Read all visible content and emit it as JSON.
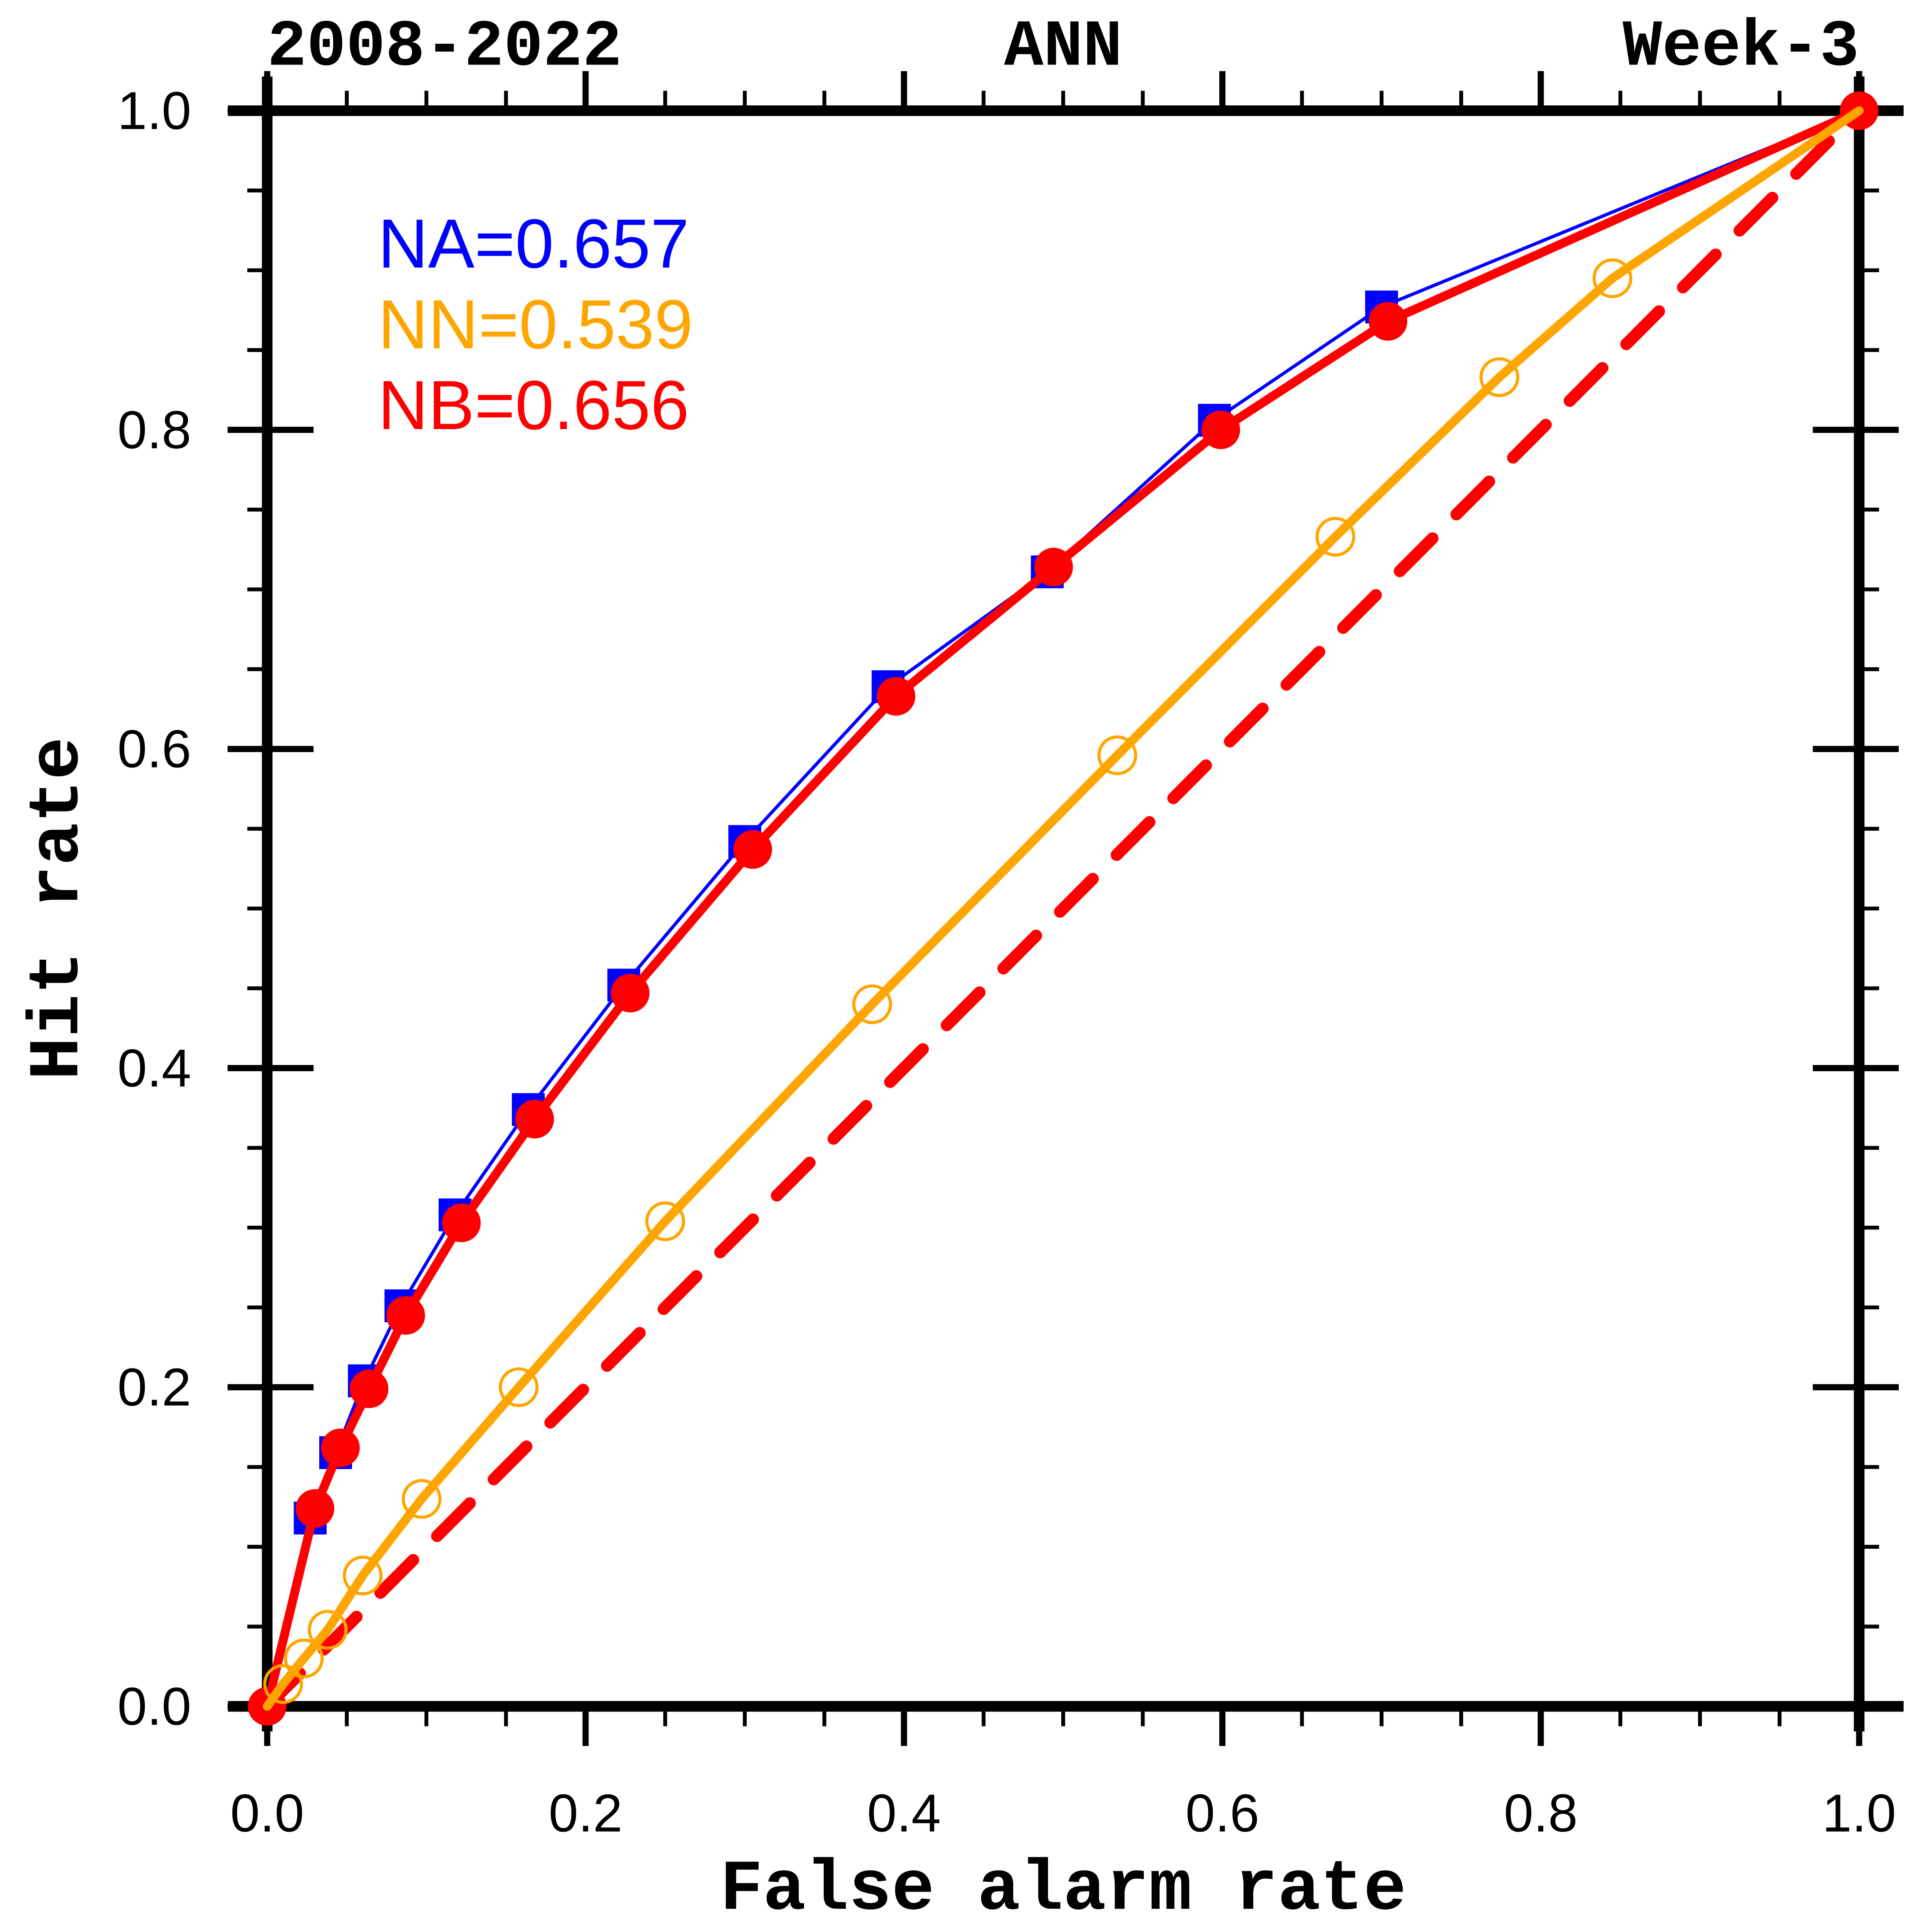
{
  "page": {
    "background": "#ffffff",
    "text_color": "#000000"
  },
  "header": {
    "title_left": "2008-2022",
    "title_center": "ANN",
    "title_right": "Week-3"
  },
  "legend": {
    "position": "upper-left-inside",
    "items": [
      {
        "label": "NA=0.657",
        "color": "#0000ff"
      },
      {
        "label": "NN=0.539",
        "color": "#ffa500"
      },
      {
        "label": "NB=0.656",
        "color": "#ff0000"
      }
    ]
  },
  "chart_data": {
    "type": "line",
    "title_left": "2008-2022",
    "title_center": "ANN",
    "title_right": "Week-3",
    "xlabel": "False alarm rate",
    "ylabel": "Hit rate",
    "xlim": [
      0.0,
      1.0
    ],
    "ylim": [
      0.0,
      1.0
    ],
    "grid": false,
    "major_ticks": [
      0.0,
      0.2,
      0.4,
      0.6,
      0.8,
      1.0
    ],
    "minor_tick_step": 0.05,
    "xtick_labels": [
      "0.0",
      "0.2",
      "0.4",
      "0.6",
      "0.8",
      "1.0"
    ],
    "ytick_labels": [
      "0.0",
      "0.2",
      "0.4",
      "0.6",
      "0.8",
      "1.0"
    ],
    "series": [
      {
        "id": "random-diagonal",
        "name": "no-skill diagonal",
        "auc": null,
        "color": "#ff0000",
        "marker": "none",
        "line_style": "dashed",
        "points": [
          [
            0.0,
            0.0
          ],
          [
            1.0,
            1.0
          ]
        ]
      },
      {
        "id": "NA",
        "name": "NA",
        "auc": 0.657,
        "legend_label": "NA=0.657",
        "color": "#0000ff",
        "marker": "filled-square",
        "line_style": "solid-thin",
        "points": [
          [
            0.0,
            0.0
          ],
          [
            0.027,
            0.118
          ],
          [
            0.043,
            0.159
          ],
          [
            0.061,
            0.204
          ],
          [
            0.084,
            0.251
          ],
          [
            0.118,
            0.308
          ],
          [
            0.164,
            0.374
          ],
          [
            0.224,
            0.452
          ],
          [
            0.3,
            0.542
          ],
          [
            0.39,
            0.639
          ],
          [
            0.49,
            0.711
          ],
          [
            0.595,
            0.806
          ],
          [
            0.7,
            0.877
          ],
          [
            1.0,
            1.0
          ]
        ]
      },
      {
        "id": "NB",
        "name": "NB",
        "auc": 0.656,
        "legend_label": "NB=0.656",
        "color": "#ff0000",
        "marker": "filled-circle",
        "line_style": "solid",
        "points": [
          [
            0.0,
            0.0
          ],
          [
            0.03,
            0.124
          ],
          [
            0.046,
            0.162
          ],
          [
            0.064,
            0.199
          ],
          [
            0.087,
            0.245
          ],
          [
            0.122,
            0.303
          ],
          [
            0.168,
            0.368
          ],
          [
            0.228,
            0.447
          ],
          [
            0.305,
            0.537
          ],
          [
            0.395,
            0.633
          ],
          [
            0.494,
            0.714
          ],
          [
            0.599,
            0.8
          ],
          [
            0.704,
            0.868
          ],
          [
            1.0,
            1.0
          ]
        ]
      },
      {
        "id": "NN",
        "name": "NN",
        "auc": 0.539,
        "legend_label": "NN=0.539",
        "color": "#ffa500",
        "marker": "open-circle",
        "line_style": "solid",
        "points": [
          [
            0.0,
            0.0
          ],
          [
            0.01,
            0.014
          ],
          [
            0.023,
            0.03
          ],
          [
            0.038,
            0.048
          ],
          [
            0.06,
            0.082
          ],
          [
            0.097,
            0.13
          ],
          [
            0.158,
            0.2
          ],
          [
            0.25,
            0.304
          ],
          [
            0.38,
            0.44
          ],
          [
            0.534,
            0.596
          ],
          [
            0.671,
            0.733
          ],
          [
            0.774,
            0.833
          ],
          [
            0.845,
            0.895
          ],
          [
            1.0,
            1.0
          ]
        ]
      }
    ],
    "legend_entries": [
      "NA=0.657",
      "NN=0.539",
      "NB=0.656"
    ],
    "legend_colors": [
      "#0000ff",
      "#ffa500",
      "#ff0000"
    ]
  }
}
